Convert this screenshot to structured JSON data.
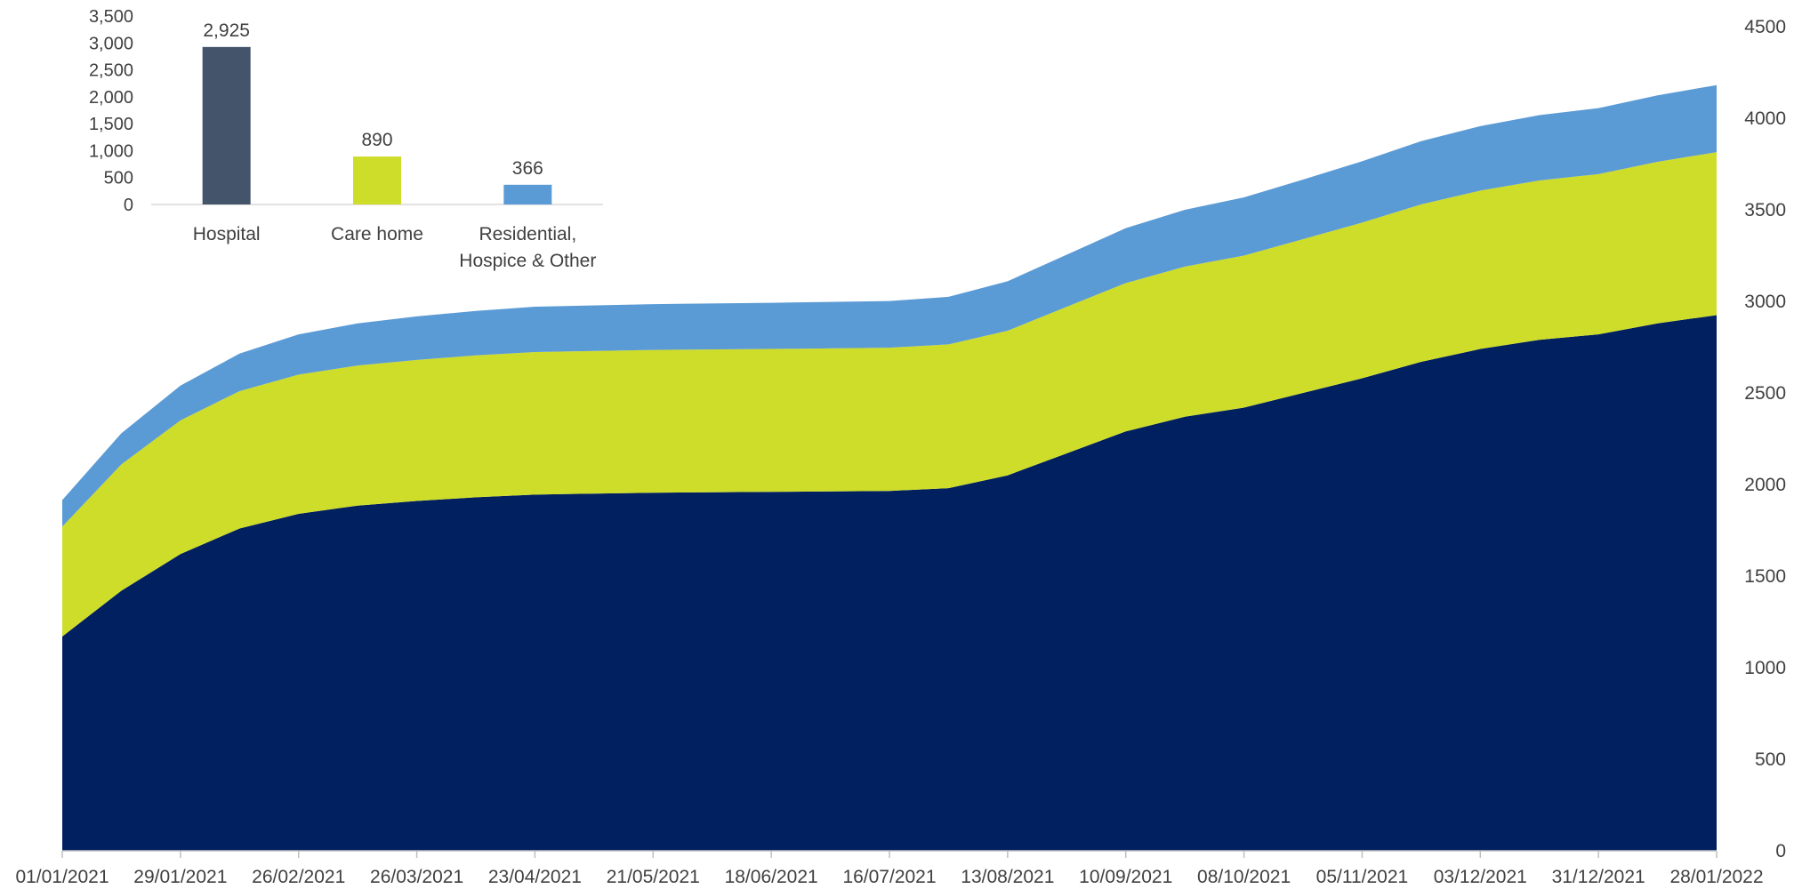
{
  "chart_data": [
    {
      "type": "area",
      "stacked": true,
      "y_axis_side": "right",
      "ylim": [
        0,
        4500
      ],
      "y_ticks": [
        0,
        500,
        1000,
        1500,
        2000,
        2500,
        3000,
        3500,
        4000,
        4500
      ],
      "x_ticks": [
        "01/01/2021",
        "29/01/2021",
        "26/02/2021",
        "26/03/2021",
        "23/04/2021",
        "21/05/2021",
        "18/06/2021",
        "16/07/2021",
        "13/08/2021",
        "10/09/2021",
        "08/10/2021",
        "05/11/2021",
        "03/12/2021",
        "31/12/2021",
        "28/01/2022"
      ],
      "x": [
        "01/01/2021",
        "15/01/2021",
        "29/01/2021",
        "12/02/2021",
        "26/02/2021",
        "12/03/2021",
        "26/03/2021",
        "09/04/2021",
        "23/04/2021",
        "21/05/2021",
        "18/06/2021",
        "16/07/2021",
        "30/07/2021",
        "13/08/2021",
        "27/08/2021",
        "10/09/2021",
        "24/09/2021",
        "08/10/2021",
        "22/10/2021",
        "05/11/2021",
        "19/11/2021",
        "03/12/2021",
        "17/12/2021",
        "31/12/2021",
        "14/01/2022",
        "28/01/2022"
      ],
      "series": [
        {
          "color": "#002060",
          "values": [
            1170,
            1420,
            1620,
            1760,
            1840,
            1885,
            1910,
            1930,
            1945,
            1955,
            1960,
            1965,
            1980,
            2050,
            2170,
            2290,
            2370,
            2420,
            2500,
            2580,
            2670,
            2740,
            2790,
            2820,
            2880,
            2925
          ]
        },
        {
          "color": "#CEDC2A",
          "values": [
            600,
            690,
            730,
            750,
            760,
            765,
            770,
            775,
            778,
            780,
            780,
            782,
            785,
            790,
            800,
            810,
            820,
            830,
            840,
            850,
            860,
            865,
            870,
            875,
            882,
            890
          ]
        },
        {
          "color": "#5B9BD5",
          "values": [
            145,
            170,
            190,
            205,
            220,
            230,
            238,
            243,
            248,
            250,
            252,
            255,
            260,
            270,
            285,
            300,
            310,
            318,
            325,
            335,
            345,
            352,
            357,
            360,
            363,
            366
          ]
        }
      ]
    },
    {
      "type": "bar",
      "ylim": [
        0,
        3500
      ],
      "y_ticks": [
        "0",
        "500",
        "1,000",
        "1,500",
        "2,000",
        "2,500",
        "3,000",
        "3,500"
      ],
      "categories": [
        [
          "Hospital"
        ],
        [
          "Care home"
        ],
        [
          "Residential,",
          "Hospice & Other"
        ]
      ],
      "values": [
        2925,
        890,
        366
      ],
      "data_labels": [
        "2,925",
        "890",
        "366"
      ],
      "colors": [
        "#44546A",
        "#CEDC2A",
        "#5B9BD5"
      ]
    }
  ]
}
